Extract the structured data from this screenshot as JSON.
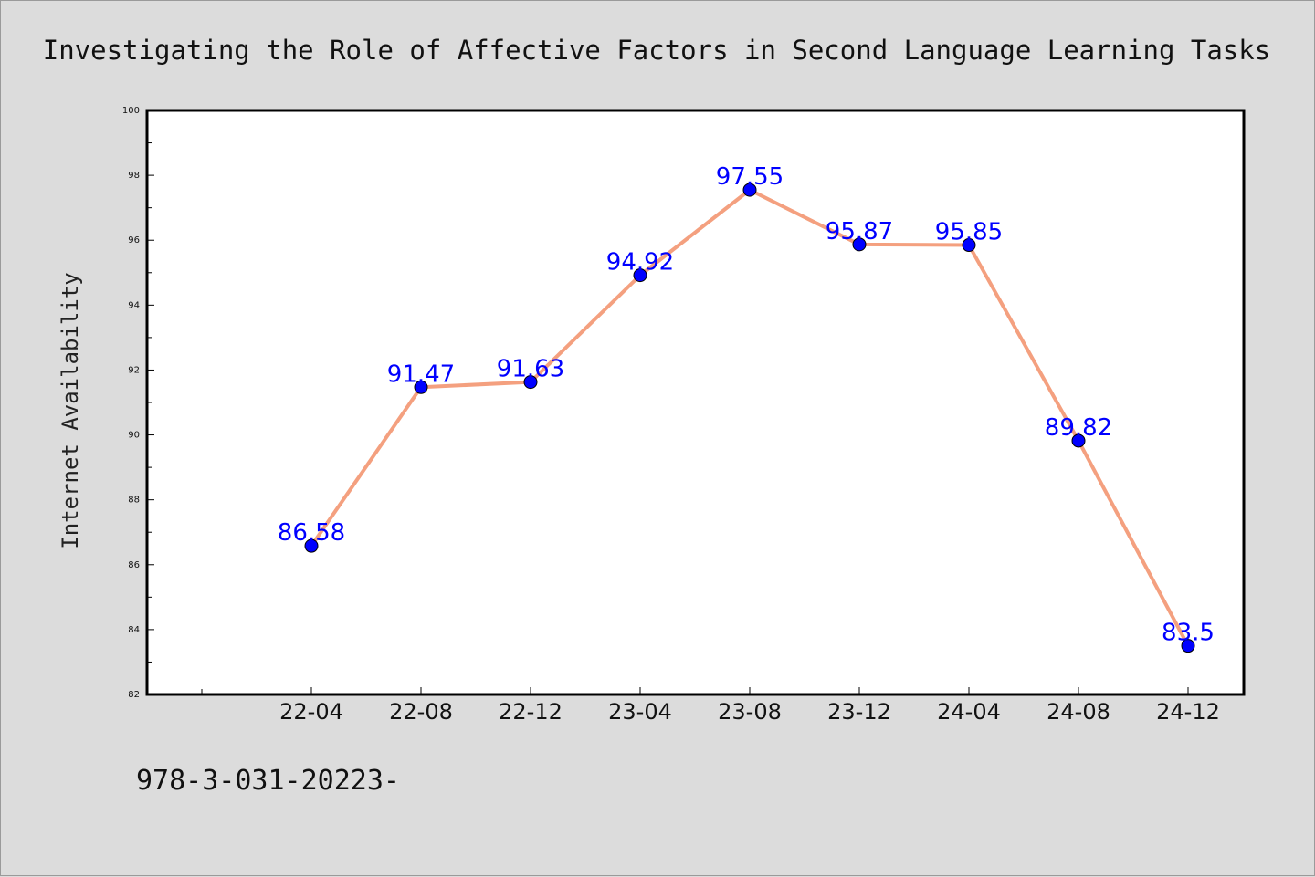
{
  "chart_data": {
    "type": "line",
    "title": "Investigating the Role of Affective Factors in Second Language Learning Tasks",
    "xlabel": "",
    "ylabel": "Internet Availability",
    "categories": [
      "22-04",
      "22-08",
      "22-12",
      "23-04",
      "23-08",
      "23-12",
      "24-04",
      "24-08",
      "24-12"
    ],
    "series": [
      {
        "values": [
          86.58,
          91.47,
          91.63,
          94.92,
          97.55,
          95.87,
          95.85,
          89.82,
          83.5
        ]
      }
    ],
    "data_labels": [
      "86.58",
      "91.47",
      "91.63",
      "94.92",
      "97.55",
      "95.87",
      "95.85",
      "89.82",
      "83.5"
    ],
    "ylim": [
      82,
      100
    ],
    "yticks": [
      "82",
      "84",
      "86",
      "88",
      "90",
      "92",
      "94",
      "96",
      "98",
      "100"
    ],
    "grid": false,
    "legend": "none",
    "line_color": "#f4a07f",
    "marker_color": "#0000ff",
    "label_color": "#0000ff",
    "footnote": "978-3-031-20223-"
  }
}
